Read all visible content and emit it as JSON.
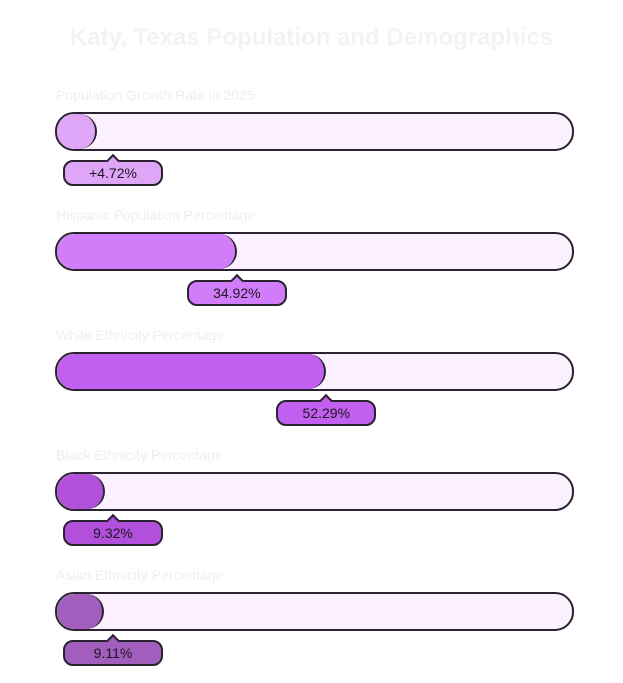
{
  "chart_data": {
    "type": "bar",
    "title": "Katy, Texas Population and Demographics",
    "xlim": [
      0,
      100
    ],
    "categories": [
      "Population Growth Rate in 2025",
      "Hispanic Population Percentage",
      "White Ethnicity Percentage",
      "Black Ethnicity Percentage",
      "Asian Ethnicity Percentage"
    ],
    "values": [
      4.72,
      34.92,
      52.29,
      9.32,
      9.11
    ],
    "value_labels": [
      "+4.72%",
      "34.92%",
      "52.29%",
      "9.32%",
      "9.11%"
    ],
    "colors": [
      "#dfa5f7",
      "#d17df9",
      "#c15ff0",
      "#b250dc",
      "#a25ebc"
    ],
    "track_color": "#fbf0fe",
    "grid": false
  }
}
